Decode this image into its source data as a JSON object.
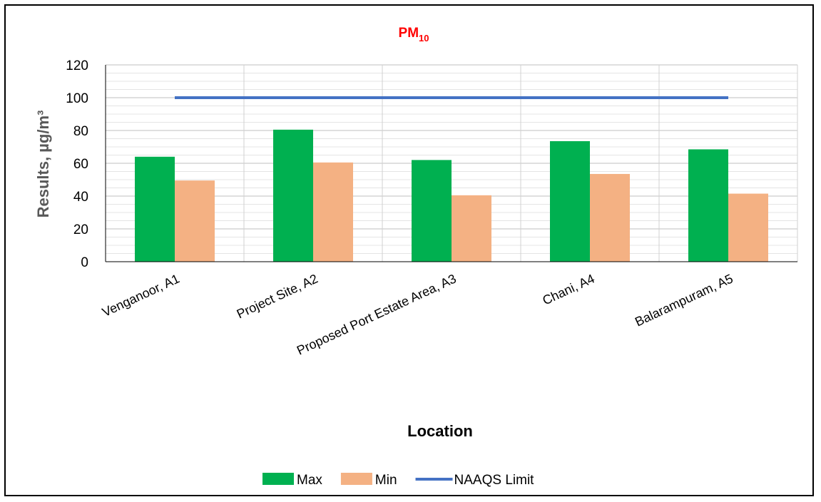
{
  "chart_data": {
    "type": "bar",
    "title": "PM",
    "title_subscript": "10",
    "title_color": "#ff0000",
    "xlabel": "Location",
    "ylabel": "Results, µg/m³",
    "ylim": [
      0,
      120
    ],
    "yticks": [
      0,
      20,
      40,
      60,
      80,
      100,
      120
    ],
    "grid": true,
    "legend_position": "bottom",
    "categories": [
      "Venganoor, A1",
      "Project Site, A2",
      "Proposed Port Estate Area, A3",
      "Chani, A4",
      "Balarampuram, A5"
    ],
    "series": [
      {
        "name": "Max",
        "type": "bar",
        "color": "#00b050",
        "values": [
          64,
          80.5,
          62,
          73.5,
          68.5
        ]
      },
      {
        "name": "Min",
        "type": "bar",
        "color": "#f4b183",
        "values": [
          49.5,
          60.5,
          40.5,
          53.5,
          41.5
        ]
      },
      {
        "name": "NAAQS Limit",
        "type": "line",
        "color": "#4472c4",
        "values": [
          100,
          100,
          100,
          100,
          100
        ]
      }
    ]
  }
}
